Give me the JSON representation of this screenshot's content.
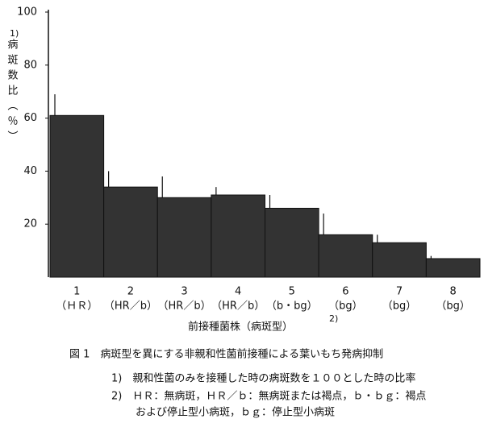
{
  "chart_data": {
    "type": "bar",
    "y_label": "病斑数比（％）",
    "y_label_note": "1)",
    "x_label": "前接種菌株（病斑型）",
    "x_label_note": "2)",
    "categories": [
      "1",
      "2",
      "3",
      "4",
      "5",
      "6",
      "7",
      "8"
    ],
    "sublabels": [
      "（ＨＲ）",
      "（HR／b）",
      "（HR／b）",
      "（HR／b）",
      "（b・bg）",
      "（bg）",
      "（bg）",
      "（bg）"
    ],
    "values": [
      61,
      34,
      30,
      31,
      26,
      16,
      13,
      7
    ],
    "errors": [
      8,
      6,
      8,
      3,
      5,
      8,
      3,
      1
    ],
    "color": "#333333",
    "ylim": [
      0,
      100
    ],
    "yticks": [
      20,
      40,
      60,
      80,
      100
    ],
    "caption": "図 1　病斑型を異にする非親和性菌前接種による葉いもち発病抑制",
    "notes": [
      "1)　親和性菌のみを接種した時の病斑数を１００とした時の比率",
      "2)　ＨＲ：無病斑，ＨＲ／ｂ：無病斑または褐点，ｂ・ｂｇ：褐点",
      "および停止型小病斑，ｂｇ：停止型小病斑"
    ]
  }
}
